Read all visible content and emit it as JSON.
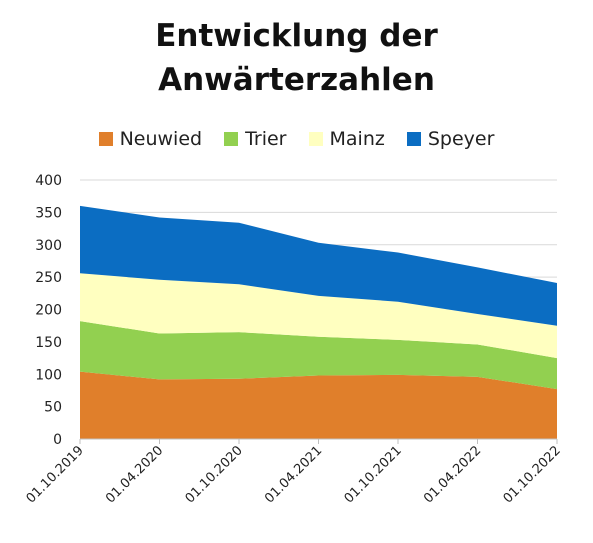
{
  "chart_data": {
    "type": "area",
    "stacked": true,
    "title_lines": [
      "Entwicklung der",
      "Anwärterzahlen"
    ],
    "categories": [
      "01.10.2019",
      "01.04.2020",
      "01.10.2020",
      "01.04.2021",
      "01.10.2021",
      "01.04.2022",
      "01.10.2022"
    ],
    "series": [
      {
        "name": "Neuwied",
        "color": "#E07F2B",
        "values": [
          104,
          92,
          93,
          98,
          99,
          96,
          77
        ]
      },
      {
        "name": "Trier",
        "color": "#92D050",
        "values": [
          78,
          71,
          72,
          60,
          54,
          50,
          48
        ]
      },
      {
        "name": "Mainz",
        "color": "#FFFFC0",
        "values": [
          74,
          83,
          74,
          63,
          59,
          47,
          50
        ]
      },
      {
        "name": "Speyer",
        "color": "#0B6DC2",
        "values": [
          104,
          96,
          95,
          82,
          76,
          72,
          66
        ]
      }
    ],
    "y_ticks": [
      "0",
      "50",
      "100",
      "150",
      "200",
      "250",
      "300",
      "350",
      "400"
    ],
    "ylim": [
      0,
      400
    ],
    "grid": true,
    "legend_position": "top"
  }
}
